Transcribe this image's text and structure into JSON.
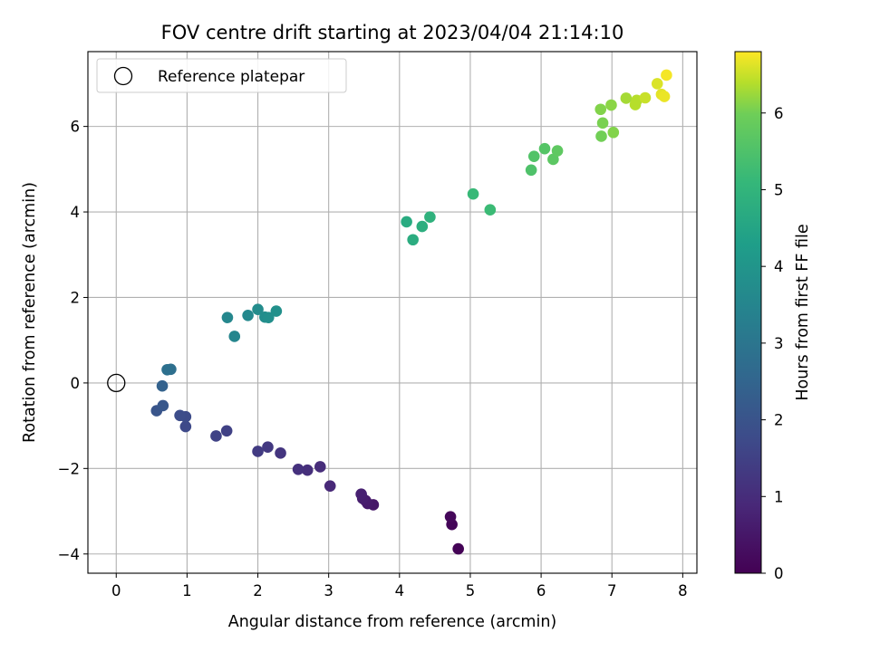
{
  "chart_data": {
    "type": "scatter",
    "title": "FOV centre drift starting at 2023/04/04 21:14:10",
    "xlabel": "Angular distance from reference (arcmin)",
    "ylabel": "Rotation from reference (arcmin)",
    "xlim": [
      -0.4,
      8.2
    ],
    "ylim": [
      -4.45,
      7.75
    ],
    "xticks": [
      0,
      1,
      2,
      3,
      4,
      5,
      6,
      7,
      8
    ],
    "yticks": [
      -4,
      -2,
      0,
      2,
      4,
      6
    ],
    "grid": true,
    "colormap": "viridis",
    "legend": {
      "label": "Reference platepar",
      "placement": "upper left"
    },
    "reference_point": {
      "x": 0,
      "y": 0
    },
    "colorbar": {
      "label": "Hours from first FF file",
      "min": 0,
      "max": 6.8,
      "ticks": [
        0,
        1,
        2,
        3,
        4,
        5,
        6
      ]
    },
    "points": [
      {
        "x": 4.83,
        "y": -3.88,
        "c": 0.05
      },
      {
        "x": 4.74,
        "y": -3.31,
        "c": 0.1
      },
      {
        "x": 4.72,
        "y": -3.13,
        "c": 0.15
      },
      {
        "x": 3.63,
        "y": -2.85,
        "c": 0.5
      },
      {
        "x": 3.55,
        "y": -2.82,
        "c": 0.55
      },
      {
        "x": 3.52,
        "y": -2.75,
        "c": 0.6
      },
      {
        "x": 3.48,
        "y": -2.7,
        "c": 0.65
      },
      {
        "x": 3.46,
        "y": -2.6,
        "c": 0.7
      },
      {
        "x": 3.02,
        "y": -2.41,
        "c": 0.9
      },
      {
        "x": 2.88,
        "y": -1.96,
        "c": 1.0
      },
      {
        "x": 2.7,
        "y": -2.04,
        "c": 1.05
      },
      {
        "x": 2.57,
        "y": -2.02,
        "c": 1.1
      },
      {
        "x": 2.32,
        "y": -1.64,
        "c": 1.2
      },
      {
        "x": 2.14,
        "y": -1.5,
        "c": 1.3
      },
      {
        "x": 2.0,
        "y": -1.6,
        "c": 1.35
      },
      {
        "x": 1.56,
        "y": -1.12,
        "c": 1.5
      },
      {
        "x": 1.41,
        "y": -1.24,
        "c": 1.55
      },
      {
        "x": 0.98,
        "y": -1.02,
        "c": 1.7
      },
      {
        "x": 0.98,
        "y": -0.79,
        "c": 1.75
      },
      {
        "x": 0.9,
        "y": -0.76,
        "c": 1.8
      },
      {
        "x": 0.57,
        "y": -0.65,
        "c": 2.05
      },
      {
        "x": 0.66,
        "y": -0.53,
        "c": 2.1
      },
      {
        "x": 0.65,
        "y": -0.07,
        "c": 2.4
      },
      {
        "x": 0.77,
        "y": 0.32,
        "c": 2.8
      },
      {
        "x": 0.72,
        "y": 0.31,
        "c": 2.85
      },
      {
        "x": 1.67,
        "y": 1.09,
        "c": 3.5
      },
      {
        "x": 1.57,
        "y": 1.53,
        "c": 3.55
      },
      {
        "x": 1.86,
        "y": 1.58,
        "c": 3.6
      },
      {
        "x": 2.0,
        "y": 1.72,
        "c": 3.7
      },
      {
        "x": 2.1,
        "y": 1.54,
        "c": 3.75
      },
      {
        "x": 2.15,
        "y": 1.53,
        "c": 3.8
      },
      {
        "x": 2.26,
        "y": 1.68,
        "c": 3.85
      },
      {
        "x": 4.1,
        "y": 3.77,
        "c": 4.7
      },
      {
        "x": 4.19,
        "y": 3.35,
        "c": 4.75
      },
      {
        "x": 4.32,
        "y": 3.66,
        "c": 4.8
      },
      {
        "x": 4.43,
        "y": 3.88,
        "c": 4.9
      },
      {
        "x": 5.04,
        "y": 4.42,
        "c": 5.15
      },
      {
        "x": 5.28,
        "y": 4.05,
        "c": 5.2
      },
      {
        "x": 5.86,
        "y": 4.98,
        "c": 5.5
      },
      {
        "x": 5.9,
        "y": 5.3,
        "c": 5.55
      },
      {
        "x": 6.05,
        "y": 5.48,
        "c": 5.6
      },
      {
        "x": 6.17,
        "y": 5.23,
        "c": 5.7
      },
      {
        "x": 6.23,
        "y": 5.43,
        "c": 5.75
      },
      {
        "x": 6.85,
        "y": 5.77,
        "c": 6.0
      },
      {
        "x": 6.87,
        "y": 6.08,
        "c": 6.05
      },
      {
        "x": 6.84,
        "y": 6.4,
        "c": 6.1
      },
      {
        "x": 7.02,
        "y": 5.86,
        "c": 6.1
      },
      {
        "x": 6.99,
        "y": 6.5,
        "c": 6.15
      },
      {
        "x": 7.2,
        "y": 6.66,
        "c": 6.3
      },
      {
        "x": 7.33,
        "y": 6.51,
        "c": 6.4
      },
      {
        "x": 7.35,
        "y": 6.61,
        "c": 6.4
      },
      {
        "x": 7.47,
        "y": 6.67,
        "c": 6.5
      },
      {
        "x": 7.64,
        "y": 7.0,
        "c": 6.6
      },
      {
        "x": 7.7,
        "y": 6.75,
        "c": 6.65
      },
      {
        "x": 7.74,
        "y": 6.7,
        "c": 6.7
      },
      {
        "x": 7.77,
        "y": 7.2,
        "c": 6.75
      }
    ]
  }
}
